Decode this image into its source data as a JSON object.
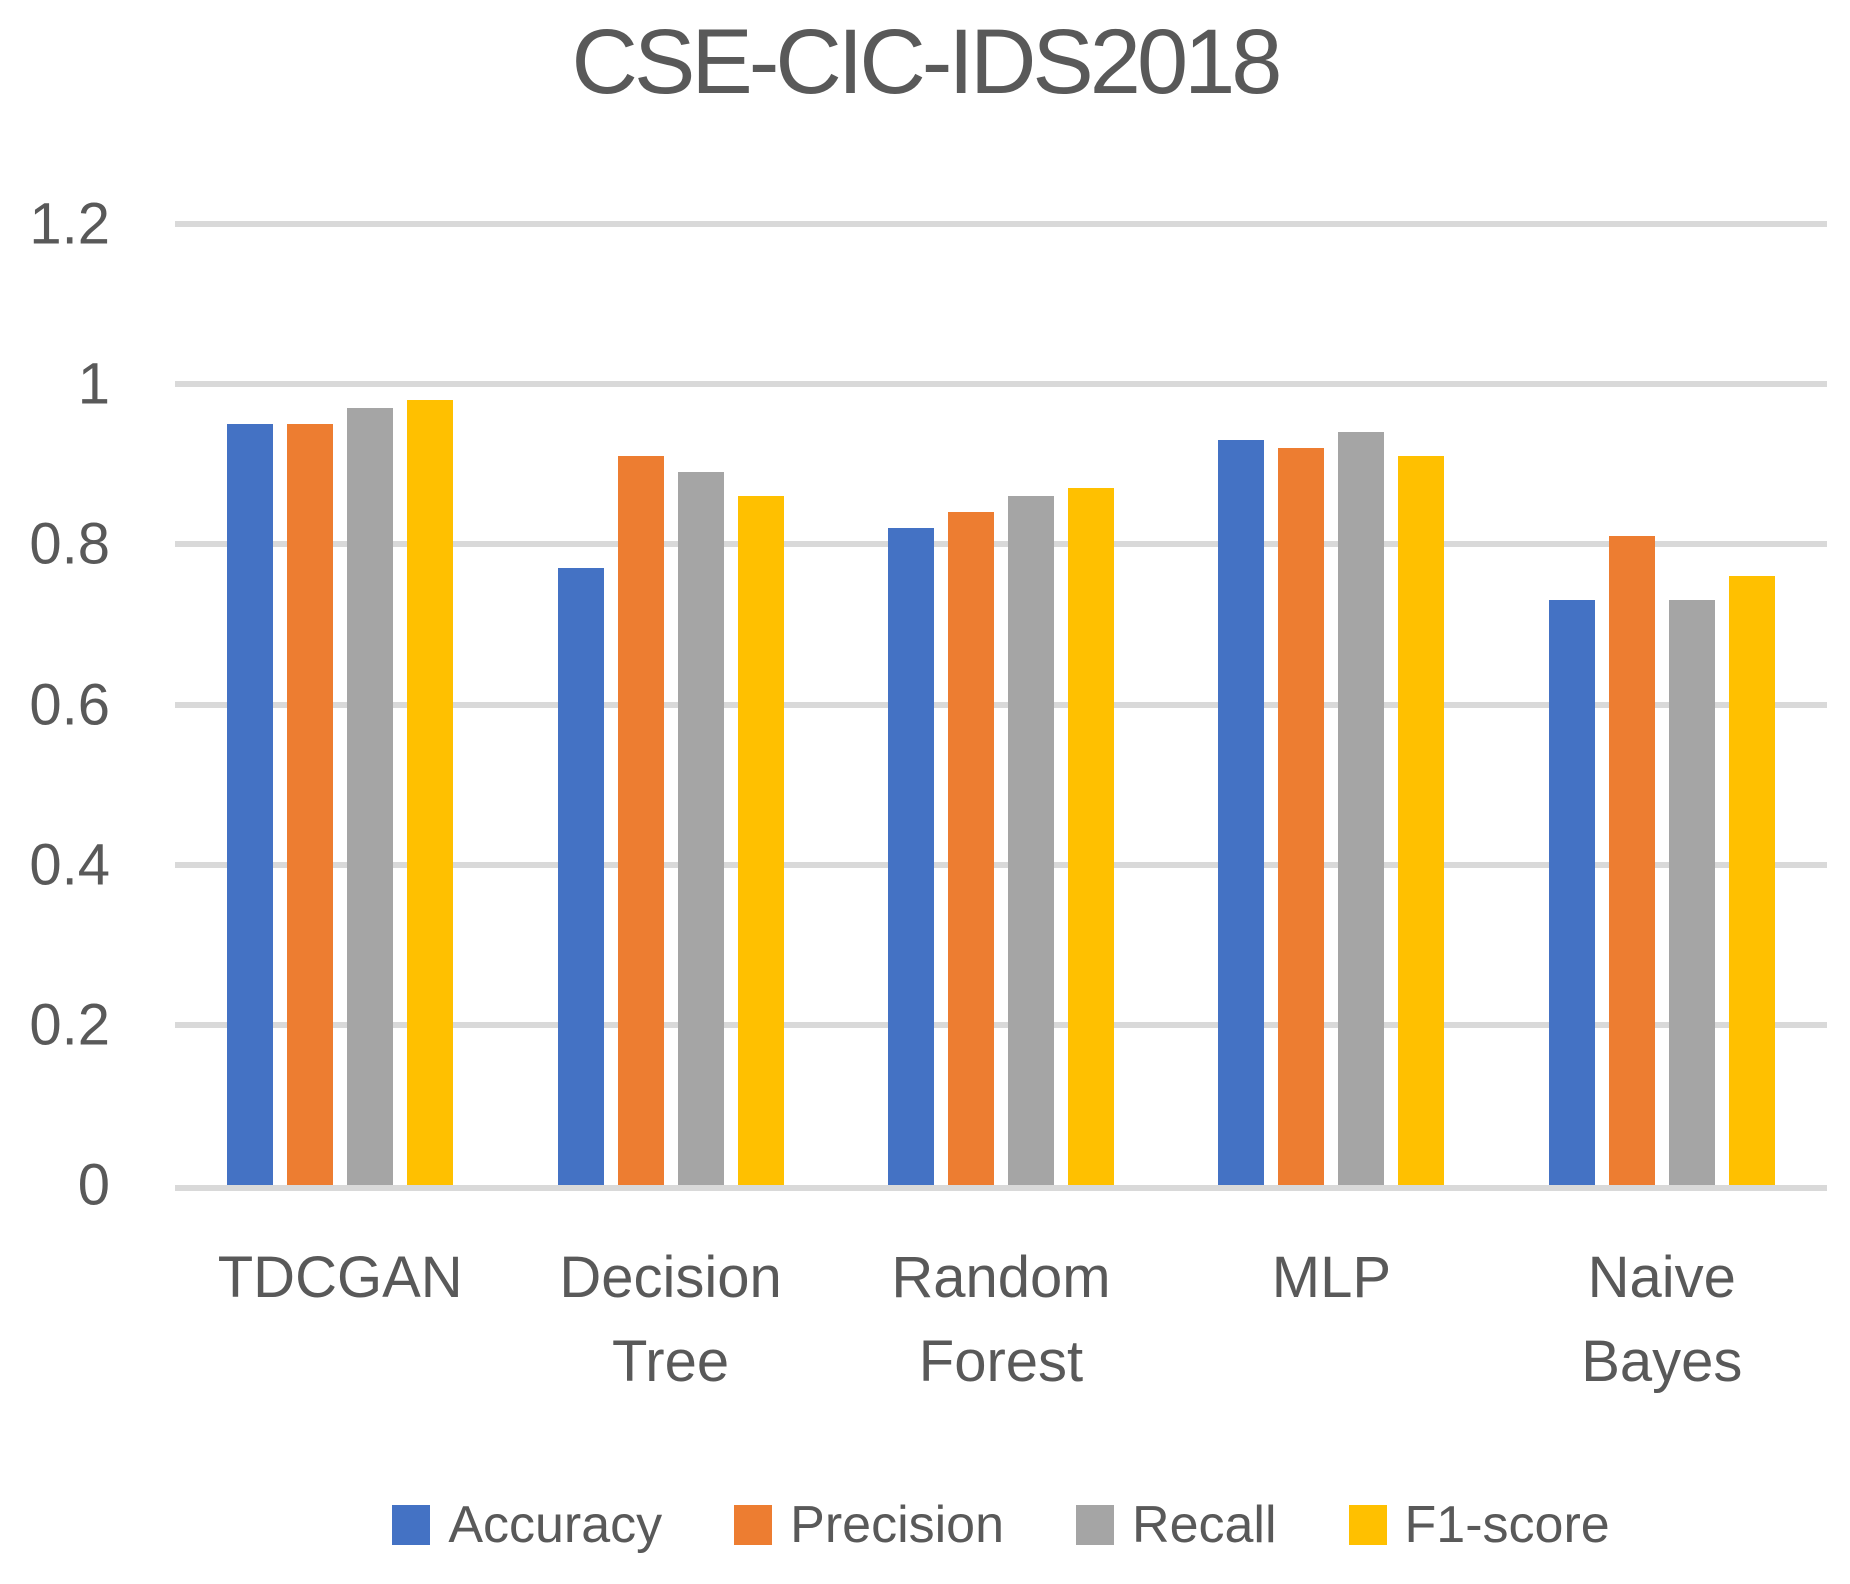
{
  "chart_data": {
    "type": "bar",
    "title": "CSE-CIC-IDS2018",
    "categories": [
      "TDCGAN",
      "Decision\nTree",
      "Random\nForest",
      "MLP",
      "Naive\nBayes"
    ],
    "series": [
      {
        "name": "Accuracy",
        "color": "#4472C4",
        "values": [
          0.95,
          0.77,
          0.82,
          0.93,
          0.73
        ]
      },
      {
        "name": "Precision",
        "color": "#ED7D31",
        "values": [
          0.95,
          0.91,
          0.84,
          0.92,
          0.81
        ]
      },
      {
        "name": "Recall",
        "color": "#A5A5A5",
        "values": [
          0.97,
          0.89,
          0.86,
          0.94,
          0.73
        ]
      },
      {
        "name": "F1-score",
        "color": "#FFC000",
        "values": [
          0.98,
          0.86,
          0.87,
          0.91,
          0.76
        ]
      }
    ],
    "ylim": [
      0,
      1.2
    ],
    "yticks": [
      0,
      0.2,
      0.4,
      0.6,
      0.8,
      1,
      1.2
    ],
    "ytick_labels": [
      "0",
      "0.2",
      "0.4",
      "0.6",
      "0.8",
      "1",
      "1.2"
    ],
    "xlabel": "",
    "ylabel": "",
    "grid": true,
    "legend_position": "bottom",
    "colors": {
      "gridline": "#D9D9D9",
      "text": "#595959",
      "background": "#FFFFFF"
    }
  }
}
